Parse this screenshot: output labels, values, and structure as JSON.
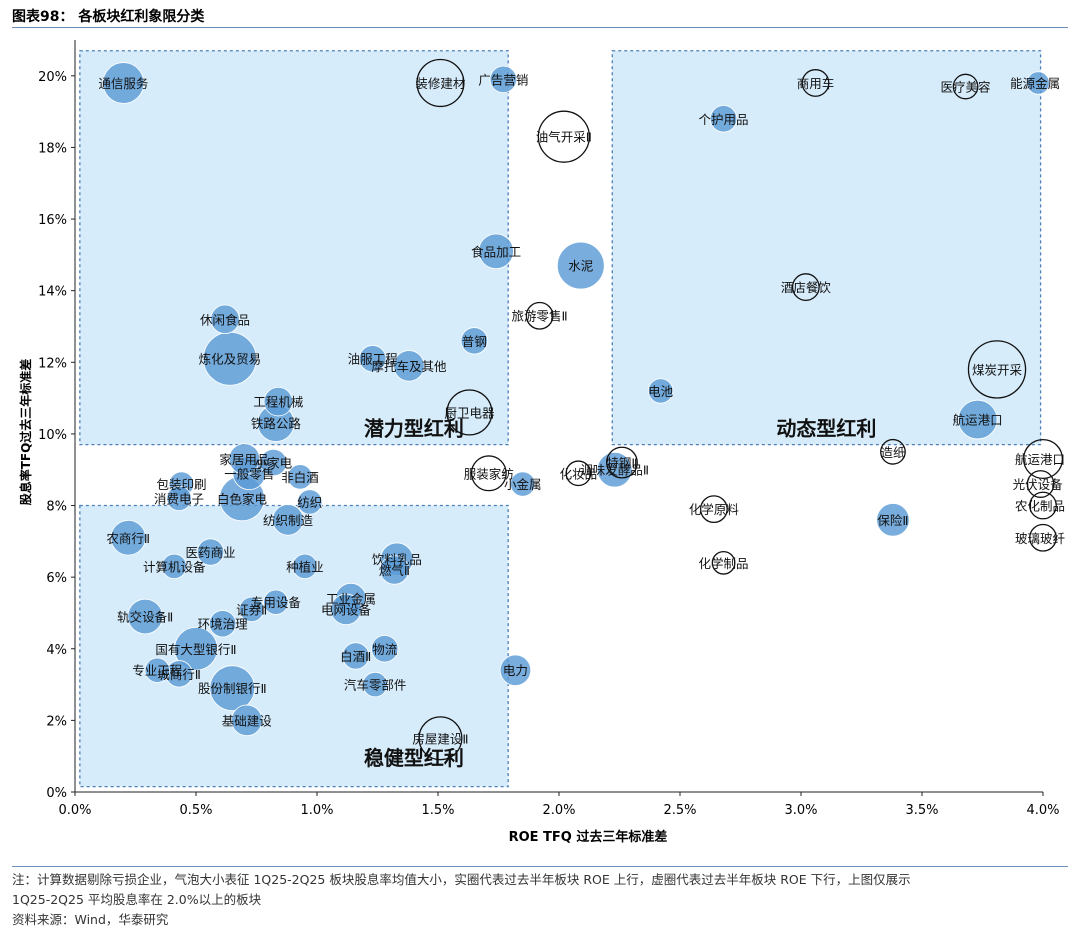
{
  "figure": {
    "title": "图表98：  各板块红利象限分类",
    "note_line1": "注：计算数据剔除亏损企业，气泡大小表征 1Q25-2Q25 板块股息率均值大小，实圈代表过去半年板块 ROE 上行，虚圈代表过去半年板块 ROE 下行，上图仅展示",
    "note_line2": "1Q25-2Q25 平均股息率在 2.0%以上的板块",
    "source": "资料来源：Wind，华泰研究"
  },
  "chart_data": {
    "type": "scatter",
    "subtype": "bubble",
    "title": "各板块红利象限分类",
    "xlabel": "ROE TFQ 过去三年标准差",
    "ylabel": "股息率TFQ过去三年标准差",
    "xlim": [
      0,
      4
    ],
    "ylim": [
      0,
      21
    ],
    "x_ticks": [
      0,
      0.5,
      1,
      1.5,
      2,
      2.5,
      3,
      3.5,
      4
    ],
    "x_tick_labels": [
      "0.0%",
      "0.5%",
      "1.0%",
      "1.5%",
      "2.0%",
      "2.5%",
      "3.0%",
      "3.5%",
      "4.0%"
    ],
    "y_ticks": [
      0,
      2,
      4,
      6,
      8,
      10,
      12,
      14,
      16,
      18,
      20
    ],
    "y_tick_labels": [
      "0%",
      "2%",
      "4%",
      "6%",
      "8%",
      "10%",
      "12%",
      "14%",
      "16%",
      "18%",
      "20%"
    ],
    "legend": "实圈=ROE上行，虚圈=ROE下行",
    "quadrants": [
      {
        "name": "潜力型红利",
        "x_range": [
          0.02,
          1.79
        ],
        "y_range": [
          9.7,
          20.7
        ]
      },
      {
        "name": "动态型红利",
        "x_range": [
          2.22,
          3.99
        ],
        "y_range": [
          9.7,
          20.7
        ]
      },
      {
        "name": "稳健型红利",
        "x_range": [
          0.02,
          1.79
        ],
        "y_range": [
          0.15,
          8.0
        ]
      }
    ],
    "points": [
      {
        "name": "通信服务",
        "x": 0.2,
        "y": 19.8,
        "size": 4.0,
        "rising": true
      },
      {
        "name": "装修建材",
        "x": 1.51,
        "y": 19.8,
        "size": 4.6,
        "rising": false
      },
      {
        "name": "广告营销",
        "x": 1.77,
        "y": 19.9,
        "size": 2.6,
        "rising": true
      },
      {
        "name": "油气开采Ⅱ",
        "x": 2.02,
        "y": 18.3,
        "size": 5.0,
        "rising": false
      },
      {
        "name": "个护用品",
        "x": 2.68,
        "y": 18.8,
        "size": 2.6,
        "rising": true
      },
      {
        "name": "商用车",
        "x": 3.06,
        "y": 19.8,
        "size": 2.6,
        "rising": false
      },
      {
        "name": "医疗美容",
        "x": 3.68,
        "y": 19.7,
        "size": 2.4,
        "rising": false
      },
      {
        "name": "能源金属",
        "x": 3.98,
        "y": 19.8,
        "size": 2.2,
        "rising": true
      },
      {
        "name": "食品加工",
        "x": 1.74,
        "y": 15.1,
        "size": 3.4,
        "rising": true
      },
      {
        "name": "水泥",
        "x": 2.09,
        "y": 14.7,
        "size": 4.6,
        "rising": true
      },
      {
        "name": "酒店餐饮",
        "x": 3.02,
        "y": 14.1,
        "size": 2.6,
        "rising": false
      },
      {
        "name": "旅游零售Ⅱ",
        "x": 1.92,
        "y": 13.3,
        "size": 2.6,
        "rising": false
      },
      {
        "name": "普钢",
        "x": 1.65,
        "y": 12.6,
        "size": 2.6,
        "rising": true
      },
      {
        "name": "休闲食品",
        "x": 0.62,
        "y": 13.2,
        "size": 2.8,
        "rising": true
      },
      {
        "name": "炼化及贸易",
        "x": 0.64,
        "y": 12.1,
        "size": 5.2,
        "rising": true
      },
      {
        "name": "油服工程",
        "x": 1.23,
        "y": 12.1,
        "size": 2.6,
        "rising": true
      },
      {
        "name": "摩托车及其他",
        "x": 1.38,
        "y": 11.9,
        "size": 3.0,
        "rising": true
      },
      {
        "name": "煤炭开采",
        "x": 3.81,
        "y": 11.8,
        "size": 5.6,
        "rising": false
      },
      {
        "name": "电池",
        "x": 2.42,
        "y": 11.2,
        "size": 2.4,
        "rising": true
      },
      {
        "name": "工程机械",
        "x": 0.84,
        "y": 10.9,
        "size": 2.8,
        "rising": true
      },
      {
        "name": "铁路公路",
        "x": 0.83,
        "y": 10.3,
        "size": 3.6,
        "rising": true
      },
      {
        "name": "厨卫电器",
        "x": 1.63,
        "y": 10.6,
        "size": 4.4,
        "rising": false
      },
      {
        "name": "调味发酵品Ⅱ",
        "x": 2.23,
        "y": 9.0,
        "size": 3.4,
        "rising": true
      },
      {
        "name": "特钢Ⅱ",
        "x": 2.26,
        "y": 9.2,
        "size": 3.0,
        "rising": false
      },
      {
        "name": "化妆品",
        "x": 2.08,
        "y": 8.9,
        "size": 2.4,
        "rising": false
      },
      {
        "name": "航运港口",
        "x": 3.73,
        "y": 10.4,
        "size": 3.8,
        "rising": true
      },
      {
        "name": "造纸",
        "x": 3.38,
        "y": 9.5,
        "size": 2.4,
        "rising": false
      },
      {
        "name": "航运港口",
        "x": 4.0,
        "y": 9.3,
        "size": 3.8,
        "rising": false
      },
      {
        "name": "光伏设备",
        "x": 3.99,
        "y": 8.6,
        "size": 2.6,
        "rising": false
      },
      {
        "name": "农化制品",
        "x": 4.0,
        "y": 8.0,
        "size": 2.6,
        "rising": false
      },
      {
        "name": "玻璃玻纤",
        "x": 4.0,
        "y": 7.1,
        "size": 2.6,
        "rising": false
      },
      {
        "name": "保险Ⅱ",
        "x": 3.38,
        "y": 7.6,
        "size": 3.2,
        "rising": true
      },
      {
        "name": "服装家纺",
        "x": 1.71,
        "y": 8.9,
        "size": 3.4,
        "rising": false
      },
      {
        "name": "小金属",
        "x": 1.85,
        "y": 8.6,
        "size": 2.4,
        "rising": true
      },
      {
        "name": "化学原料",
        "x": 2.64,
        "y": 7.9,
        "size": 2.6,
        "rising": false
      },
      {
        "name": "化学制品",
        "x": 2.68,
        "y": 6.4,
        "size": 2.2,
        "rising": false
      },
      {
        "name": "家居用品",
        "x": 0.7,
        "y": 9.3,
        "size": 3.0,
        "rising": true
      },
      {
        "name": "一般零售",
        "x": 0.72,
        "y": 8.9,
        "size": 3.2,
        "rising": true
      },
      {
        "name": "小家电",
        "x": 0.82,
        "y": 9.2,
        "size": 2.6,
        "rising": true
      },
      {
        "name": "非白酒",
        "x": 0.93,
        "y": 8.8,
        "size": 2.4,
        "rising": true
      },
      {
        "name": "包装印刷",
        "x": 0.44,
        "y": 8.6,
        "size": 2.4,
        "rising": true
      },
      {
        "name": "消费电子",
        "x": 0.43,
        "y": 8.2,
        "size": 2.4,
        "rising": true
      },
      {
        "name": "白色家电",
        "x": 0.69,
        "y": 8.2,
        "size": 4.4,
        "rising": true
      },
      {
        "name": "纺织制造",
        "x": 0.88,
        "y": 7.6,
        "size": 3.0,
        "rising": true
      },
      {
        "name": "纺织",
        "x": 0.97,
        "y": 8.1,
        "size": 2.4,
        "rising": true
      },
      {
        "name": "农商行Ⅱ",
        "x": 0.22,
        "y": 7.1,
        "size": 3.4,
        "rising": true
      },
      {
        "name": "医药商业",
        "x": 0.56,
        "y": 6.7,
        "size": 2.6,
        "rising": true
      },
      {
        "name": "计算机设备",
        "x": 0.41,
        "y": 6.3,
        "size": 2.4,
        "rising": true
      },
      {
        "name": "种植业",
        "x": 0.95,
        "y": 6.3,
        "size": 2.4,
        "rising": true
      },
      {
        "name": "饮料乳品",
        "x": 1.33,
        "y": 6.5,
        "size": 3.2,
        "rising": true
      },
      {
        "name": "燃气Ⅱ",
        "x": 1.32,
        "y": 6.2,
        "size": 2.8,
        "rising": true
      },
      {
        "name": "工业金属",
        "x": 1.14,
        "y": 5.4,
        "size": 3.0,
        "rising": true
      },
      {
        "name": "电网设备",
        "x": 1.12,
        "y": 5.1,
        "size": 3.0,
        "rising": true
      },
      {
        "name": "专用设备",
        "x": 0.83,
        "y": 5.3,
        "size": 2.4,
        "rising": true
      },
      {
        "name": "证券Ⅱ",
        "x": 0.73,
        "y": 5.1,
        "size": 2.4,
        "rising": true
      },
      {
        "name": "轨交设备Ⅱ",
        "x": 0.29,
        "y": 4.9,
        "size": 3.4,
        "rising": true
      },
      {
        "name": "环境治理",
        "x": 0.61,
        "y": 4.7,
        "size": 2.6,
        "rising": true
      },
      {
        "name": "国有大型银行Ⅱ",
        "x": 0.5,
        "y": 4.0,
        "size": 4.2,
        "rising": true
      },
      {
        "name": "物流",
        "x": 1.28,
        "y": 4.0,
        "size": 2.6,
        "rising": true
      },
      {
        "name": "白酒Ⅱ",
        "x": 1.16,
        "y": 3.8,
        "size": 2.6,
        "rising": true
      },
      {
        "name": "专业工程",
        "x": 0.34,
        "y": 3.4,
        "size": 2.4,
        "rising": true
      },
      {
        "name": "城商行Ⅱ",
        "x": 0.43,
        "y": 3.3,
        "size": 2.6,
        "rising": true
      },
      {
        "name": "股份制银行Ⅱ",
        "x": 0.65,
        "y": 2.9,
        "size": 4.4,
        "rising": true
      },
      {
        "name": "汽车零部件",
        "x": 1.24,
        "y": 3.0,
        "size": 2.4,
        "rising": true
      },
      {
        "name": "电力",
        "x": 1.82,
        "y": 3.4,
        "size": 3.0,
        "rising": true
      },
      {
        "name": "基础建设",
        "x": 0.71,
        "y": 2.0,
        "size": 3.0,
        "rising": true
      },
      {
        "name": "房屋建设Ⅱ",
        "x": 1.51,
        "y": 1.5,
        "size": 4.2,
        "rising": false
      }
    ]
  }
}
